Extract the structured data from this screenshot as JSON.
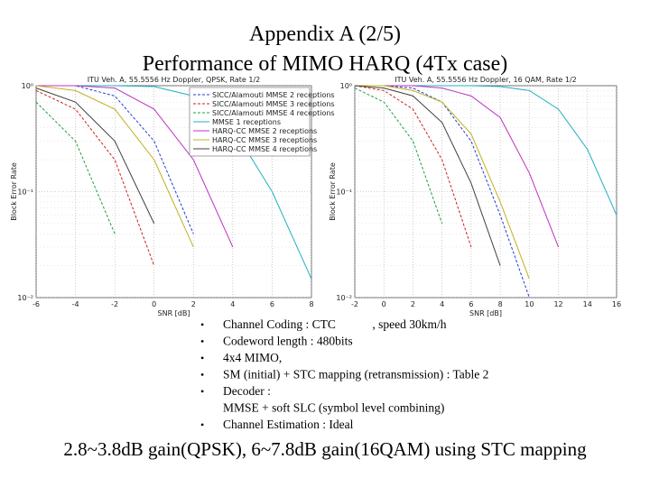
{
  "header": {
    "title": [
      "Appendix A (2/5)",
      "Performance of MIMO HARQ (4Tx case)"
    ]
  },
  "chart_data": [
    {
      "type": "line",
      "title": "ITU Veh. A, 55.5556 Hz Doppler, QPSK, Rate 1/2",
      "x_label": "SNR [dB]",
      "y_label": "Block Error Rate",
      "x": [
        -6,
        -4,
        -2,
        0,
        2,
        4,
        6,
        8
      ],
      "xlim": [
        -6,
        8
      ],
      "xticks": [
        -6,
        -4,
        -2,
        0,
        2,
        4,
        6,
        8
      ],
      "ylim": [
        0.01,
        1
      ],
      "y_scale": "log",
      "yticks": [
        {
          "value": 0.01,
          "label": "10⁻²"
        },
        {
          "value": 0.1,
          "label": "10⁻¹"
        },
        {
          "value": 1,
          "label": "10⁰"
        }
      ],
      "grid": true,
      "legend": "upper right",
      "series": [
        {
          "name": "SICC/Alamouti MMSE 2 receptions",
          "color": "#1f3fd0",
          "values": [
            1,
            1,
            0.8,
            0.3,
            0.04,
            null,
            null,
            null
          ]
        },
        {
          "name": "SICC/Alamouti MMSE 3 receptions",
          "color": "#d02020",
          "values": [
            0.9,
            0.6,
            0.2,
            0.02,
            null,
            null,
            null,
            null
          ]
        },
        {
          "name": "SICC/Alamouti MMSE 4 receptions",
          "color": "#20a040",
          "values": [
            0.7,
            0.3,
            0.04,
            null,
            null,
            null,
            null,
            null
          ]
        },
        {
          "name": "MMSE 1 receptions",
          "color": "#20b0c0",
          "values": [
            1,
            1,
            1,
            0.98,
            0.8,
            0.4,
            0.1,
            0.015
          ]
        },
        {
          "name": "HARQ-CC MMSE 2 receptions",
          "color": "#c030c0",
          "values": [
            1,
            1,
            0.95,
            0.6,
            0.2,
            0.03,
            null,
            null
          ]
        },
        {
          "name": "HARQ-CC MMSE 3 receptions",
          "color": "#c0b020",
          "values": [
            1,
            0.9,
            0.6,
            0.2,
            0.03,
            null,
            null,
            null
          ]
        },
        {
          "name": "HARQ-CC MMSE 4 receptions",
          "color": "#404040",
          "values": [
            0.95,
            0.7,
            0.3,
            0.05,
            null,
            null,
            null,
            null
          ]
        }
      ]
    },
    {
      "type": "line",
      "title": "ITU Veh. A, 55.5556 Hz Doppler, 16 QAM, Rate 1/2",
      "x_label": "SNR [dB]",
      "y_label": "Block Error Rate",
      "x": [
        -2,
        0,
        2,
        4,
        6,
        8,
        10,
        12,
        14,
        16
      ],
      "xlim": [
        -2,
        16
      ],
      "xticks": [
        -2,
        0,
        2,
        4,
        6,
        8,
        10,
        12,
        14,
        16
      ],
      "ylim": [
        0.01,
        1
      ],
      "y_scale": "log",
      "yticks": [
        {
          "value": 0.01,
          "label": "10⁻²"
        },
        {
          "value": 0.1,
          "label": "10⁻¹"
        },
        {
          "value": 1,
          "label": "10⁰"
        }
      ],
      "grid": true,
      "series": [
        {
          "color": "#1f3fd0",
          "values": [
            1,
            1,
            0.95,
            0.7,
            0.3,
            0.06,
            0.01,
            null,
            null,
            null
          ]
        },
        {
          "color": "#d02020",
          "values": [
            1,
            0.9,
            0.6,
            0.2,
            0.03,
            null,
            null,
            null,
            null,
            null
          ]
        },
        {
          "color": "#20a040",
          "values": [
            0.95,
            0.7,
            0.3,
            0.05,
            null,
            null,
            null,
            null,
            null,
            null
          ]
        },
        {
          "color": "#20b0c0",
          "values": [
            1,
            1,
            1,
            1,
            1,
            0.98,
            0.9,
            0.6,
            0.25,
            0.06
          ]
        },
        {
          "color": "#c030c0",
          "values": [
            1,
            1,
            1,
            0.95,
            0.8,
            0.5,
            0.15,
            0.03,
            null,
            null
          ]
        },
        {
          "color": "#c0b020",
          "values": [
            1,
            1,
            0.9,
            0.7,
            0.35,
            0.08,
            0.015,
            null,
            null,
            null
          ]
        },
        {
          "color": "#404040",
          "values": [
            1,
            0.95,
            0.8,
            0.45,
            0.12,
            0.02,
            null,
            null,
            null,
            null
          ]
        }
      ]
    }
  ],
  "bullets": [
    [
      "Channel Coding : CTC            , speed 30km/h"
    ],
    [
      "Codeword length : 480bits"
    ],
    [
      "4x4 MIMO,"
    ],
    [
      "SM (initial) + STC mapping (retransmission) : Table 2"
    ],
    [
      "Decoder :",
      "MMSE + soft SLC (symbol level combining)"
    ],
    [
      "Channel Estimation : Ideal"
    ]
  ],
  "conclusion": "2.8~3.8dB gain(QPSK), 6~7.8dB gain(16QAM) using STC mapping"
}
